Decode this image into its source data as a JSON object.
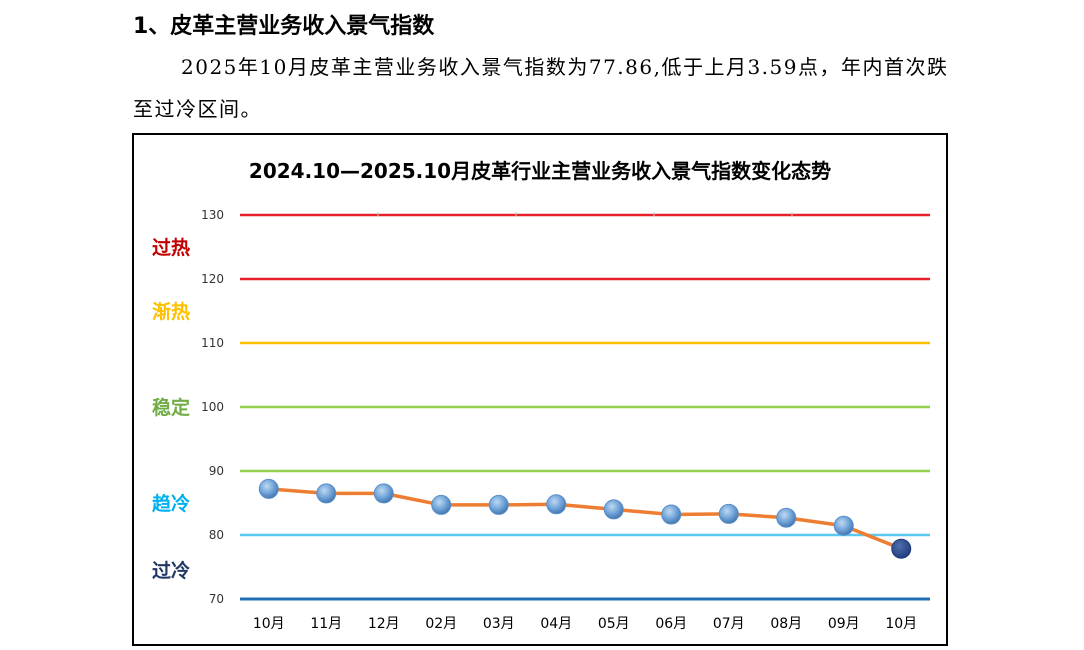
{
  "section": {
    "heading": "1、皮革主营业务收入景气指数",
    "paragraph": "2025年10月皮革主营业务收入景气指数为77.86,低于上月3.59点，年内首次跌至过冷区间。"
  },
  "chart_data": {
    "type": "line",
    "title": "2024.10—2025.10月皮革行业主营业务收入景气指数变化态势",
    "xlabel": "",
    "ylabel": "",
    "categories": [
      "10月",
      "11月",
      "12月",
      "02月",
      "03月",
      "04月",
      "05月",
      "06月",
      "07月",
      "08月",
      "09月",
      "10月"
    ],
    "series": [
      {
        "values": [
          87.2,
          86.5,
          86.5,
          84.7,
          84.7,
          84.8,
          84.0,
          83.2,
          83.3,
          82.7,
          81.45,
          77.86
        ],
        "line_color": "#ED7D31",
        "marker_color": "#5B9BD5",
        "last_marker_color": "#2F4F8F"
      }
    ],
    "ylim": [
      70,
      130
    ],
    "yticks": [
      70,
      80,
      90,
      100,
      110,
      120,
      130
    ],
    "grid": true,
    "legend": "none",
    "threshold_lines": [
      {
        "value": 130,
        "color": "#E8202A"
      },
      {
        "value": 120,
        "color": "#E8202A"
      },
      {
        "value": 110,
        "color": "#FFC000"
      },
      {
        "value": 100,
        "color": "#92D050"
      },
      {
        "value": 90,
        "color": "#92D050"
      },
      {
        "value": 80,
        "color": "#5BC8F0"
      },
      {
        "value": 70,
        "color": "#1F6FB5"
      }
    ],
    "zones": [
      {
        "label": "过热",
        "value": 125,
        "color": "#C00000"
      },
      {
        "label": "渐热",
        "value": 115,
        "color": "#FFC000"
      },
      {
        "label": "稳定",
        "value": 100,
        "color": "#70AD47"
      },
      {
        "label": "趋冷",
        "value": 85,
        "color": "#00B0F0"
      },
      {
        "label": "过冷",
        "value": 74.5,
        "color": "#1F3864"
      }
    ]
  }
}
